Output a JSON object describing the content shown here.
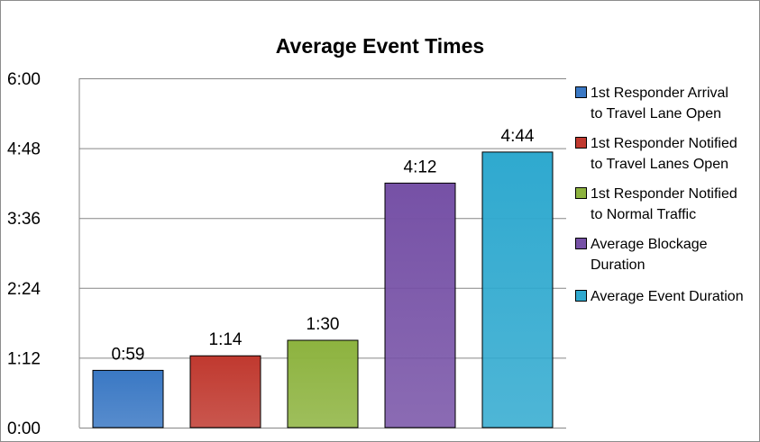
{
  "chart_data": {
    "type": "bar",
    "title": "Average Event Times",
    "xlabel": "",
    "ylabel": "",
    "y_unit": "minutes",
    "ylim": [
      0,
      360
    ],
    "y_ticks": [
      {
        "value": 0,
        "label": "0:00"
      },
      {
        "value": 72,
        "label": "1:12"
      },
      {
        "value": 144,
        "label": "2:24"
      },
      {
        "value": 216,
        "label": "3:36"
      },
      {
        "value": 288,
        "label": "4:48"
      },
      {
        "value": 360,
        "label": "6:00"
      }
    ],
    "grid": true,
    "legend_position": "right",
    "series": [
      {
        "name": "1st Responder Arrival to Travel Lane Open",
        "value": 59,
        "label": "0:59",
        "color": "#3a78c4"
      },
      {
        "name": "1st Responder Notified to Travel Lanes Open",
        "value": 74,
        "label": "1:14",
        "color": "#c0392f"
      },
      {
        "name": "1st Responder Notified to Normal Traffic",
        "value": 90,
        "label": "1:30",
        "color": "#8db33f"
      },
      {
        "name": "Average Blockage Duration",
        "value": 252,
        "label": "4:12",
        "color": "#7651a6"
      },
      {
        "name": "Average Event Duration",
        "value": 284,
        "label": "4:44",
        "color": "#2fa9cf"
      }
    ]
  }
}
